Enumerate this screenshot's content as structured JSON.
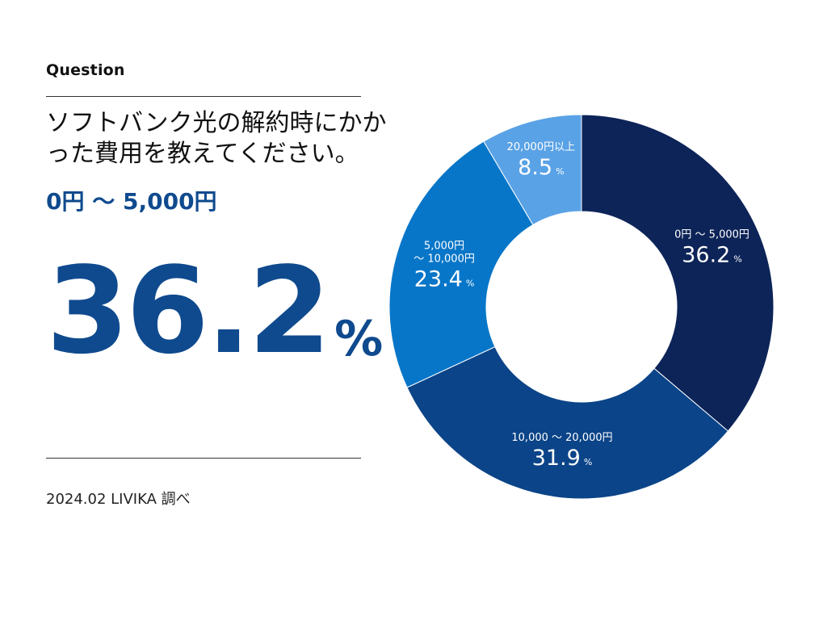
{
  "header": {
    "question_label": "Question",
    "question_text": "ソフトバンク光の解約時にかかった費用を教えてください。"
  },
  "highlight": {
    "range_label": "0円 ～ 5,000円",
    "value": "36.2",
    "unit": "%"
  },
  "footer": {
    "source": "2024.02 LIVIKA 調べ"
  },
  "colors": {
    "accent": "#0f4a8e",
    "slice_1": "#0d2458",
    "slice_2": "#0b4488",
    "slice_3": "#0876c8",
    "slice_4": "#5aa2e6"
  },
  "chart_data": {
    "type": "pie",
    "donut": true,
    "unit": "%",
    "categories": [
      "0円 ～ 5,000円",
      "10,000 ～ 20,000円",
      "5,000円\n～ 10,000円",
      "20,000円以上"
    ],
    "values": [
      36.2,
      31.9,
      23.4,
      8.5
    ],
    "value_labels": [
      "36.2",
      "31.9",
      "23.4",
      "8.5"
    ],
    "start": "12 o'clock, clockwise"
  }
}
